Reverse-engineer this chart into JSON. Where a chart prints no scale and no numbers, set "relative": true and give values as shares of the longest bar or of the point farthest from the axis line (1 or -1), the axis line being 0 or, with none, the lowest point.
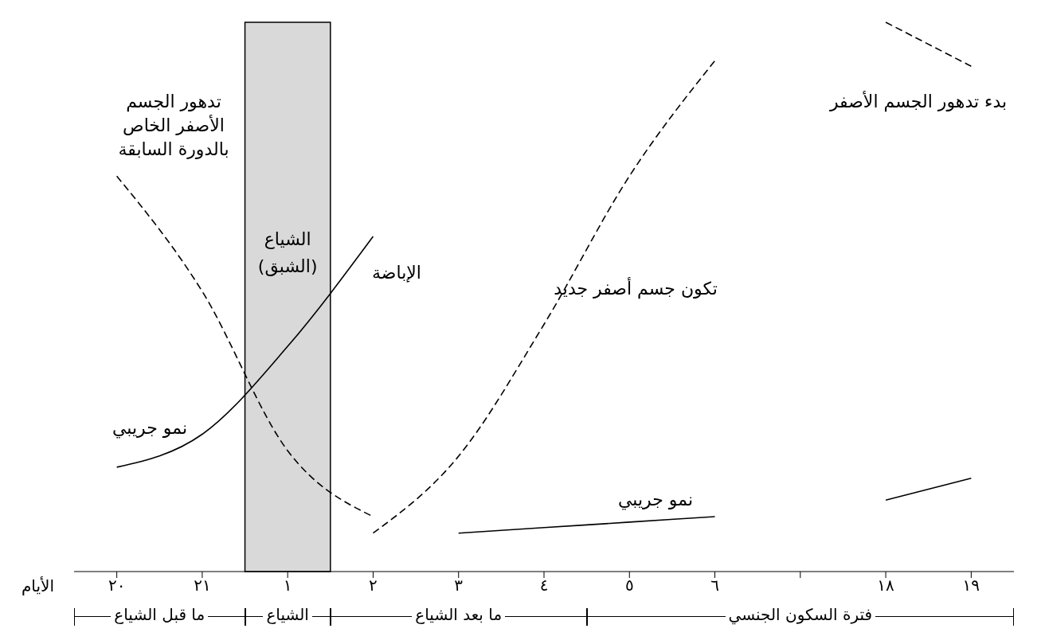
{
  "chart_data": {
    "type": "line",
    "relative": true,
    "xlabel": "الأيام",
    "categories": [
      "٢٠",
      "٢١",
      "١",
      "٢",
      "٣",
      "٤",
      "٥",
      "٦",
      null,
      "١٨",
      "١٩"
    ],
    "series": [
      {
        "color": "#000000",
        "line_style": "dashed",
        "values": [
          0.72,
          0.51,
          0.22,
          0.1,
          null,
          null,
          null,
          null,
          null,
          null,
          null
        ]
      },
      {
        "color": "#000000",
        "line_style": "solid",
        "values": [
          0.19,
          0.25,
          0.41,
          0.61,
          null,
          null,
          null,
          null,
          null,
          null,
          null
        ]
      },
      {
        "color": "#000000",
        "line_style": "solid",
        "values": [
          null,
          null,
          null,
          null,
          0.07,
          0.08,
          0.09,
          0.1,
          null,
          0.13,
          0.17
        ]
      },
      {
        "color": "#000000",
        "line_style": "dashed",
        "values": [
          null,
          null,
          null,
          0.07,
          0.21,
          0.45,
          0.72,
          0.93,
          null,
          1,
          0.92
        ]
      }
    ],
    "bands": [
      {
        "axis": "x",
        "from": "١",
        "to": "١",
        "label": "الشياع (الشبق)",
        "color": "#d9d9d9"
      }
    ],
    "annotations": [
      "تدهور الجسم الأصفر الخاص بالدورة السابقة",
      "الإباضة",
      "تكون جسم أصفر جديد",
      "بدء تدهور الجسم الأصفر",
      "نمو جريبي",
      "نمو جريبي",
      "ما قبل الشياع",
      "الشياع",
      "ما بعد الشياع",
      "فترة السكون الجنسي"
    ],
    "grid": false,
    "legend": false
  }
}
